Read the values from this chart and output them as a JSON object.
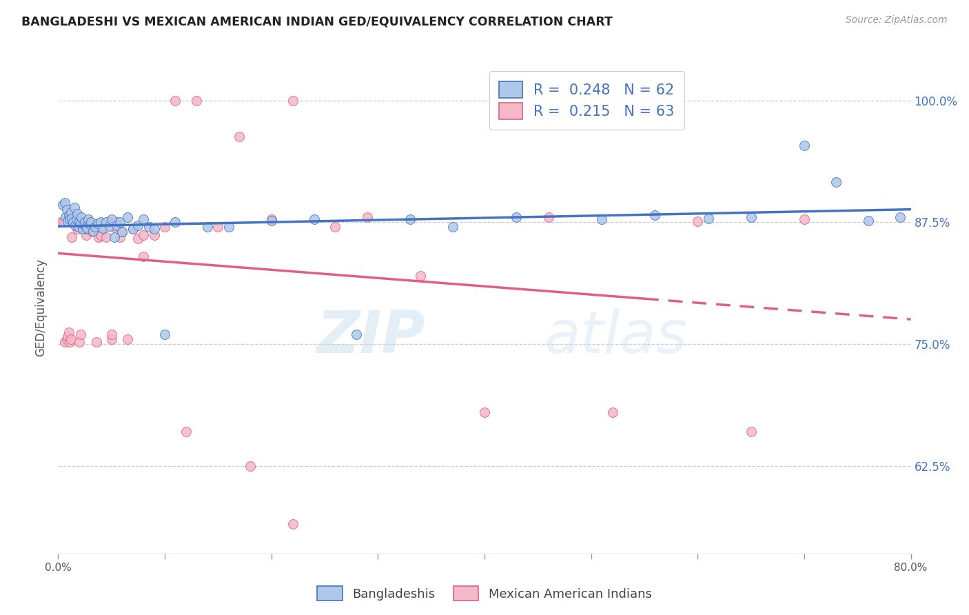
{
  "title": "BANGLADESHI VS MEXICAN AMERICAN INDIAN GED/EQUIVALENCY CORRELATION CHART",
  "source": "Source: ZipAtlas.com",
  "ylabel": "GED/Equivalency",
  "yticks": [
    "62.5%",
    "75.0%",
    "87.5%",
    "100.0%"
  ],
  "ytick_vals": [
    0.625,
    0.75,
    0.875,
    1.0
  ],
  "xlim": [
    0.0,
    0.8
  ],
  "ylim": [
    0.535,
    1.04
  ],
  "blue_R": 0.248,
  "blue_N": 62,
  "pink_R": 0.215,
  "pink_N": 63,
  "blue_color": "#adc8e8",
  "pink_color": "#f5b8c8",
  "blue_line_color": "#4472c4",
  "pink_line_color": "#e06080",
  "legend_label_blue": "Bangladeshis",
  "legend_label_pink": "Mexican American Indians",
  "watermark_zip": "ZIP",
  "watermark_atlas": "atlas",
  "blue_points_x": [
    0.004,
    0.006,
    0.007,
    0.008,
    0.009,
    0.01,
    0.011,
    0.012,
    0.013,
    0.014,
    0.015,
    0.016,
    0.017,
    0.018,
    0.019,
    0.02,
    0.021,
    0.022,
    0.023,
    0.024,
    0.025,
    0.026,
    0.027,
    0.028,
    0.03,
    0.031,
    0.033,
    0.035,
    0.037,
    0.04,
    0.042,
    0.045,
    0.048,
    0.05,
    0.053,
    0.055,
    0.058,
    0.06,
    0.065,
    0.07,
    0.075,
    0.08,
    0.085,
    0.09,
    0.1,
    0.11,
    0.14,
    0.16,
    0.2,
    0.24,
    0.28,
    0.33,
    0.37,
    0.43,
    0.51,
    0.56,
    0.61,
    0.65,
    0.7,
    0.73,
    0.76,
    0.79
  ],
  "blue_points_y": [
    0.893,
    0.895,
    0.88,
    0.888,
    0.876,
    0.882,
    0.878,
    0.885,
    0.879,
    0.875,
    0.89,
    0.872,
    0.878,
    0.884,
    0.87,
    0.876,
    0.874,
    0.88,
    0.868,
    0.873,
    0.875,
    0.871,
    0.869,
    0.878,
    0.873,
    0.875,
    0.866,
    0.87,
    0.874,
    0.875,
    0.869,
    0.875,
    0.871,
    0.878,
    0.86,
    0.872,
    0.875,
    0.865,
    0.88,
    0.868,
    0.872,
    0.878,
    0.87,
    0.868,
    0.76,
    0.875,
    0.87,
    0.87,
    0.877,
    0.878,
    0.76,
    0.878,
    0.87,
    0.88,
    0.878,
    0.882,
    0.879,
    0.88,
    0.954,
    0.916,
    0.877,
    0.88
  ],
  "pink_points_x": [
    0.003,
    0.005,
    0.006,
    0.008,
    0.009,
    0.01,
    0.011,
    0.012,
    0.013,
    0.014,
    0.015,
    0.016,
    0.017,
    0.018,
    0.019,
    0.02,
    0.021,
    0.022,
    0.023,
    0.025,
    0.026,
    0.027,
    0.028,
    0.03,
    0.032,
    0.034,
    0.036,
    0.038,
    0.04,
    0.042,
    0.045,
    0.048,
    0.05,
    0.053,
    0.055,
    0.058,
    0.06,
    0.065,
    0.07,
    0.075,
    0.08,
    0.09,
    0.1,
    0.11,
    0.13,
    0.15,
    0.17,
    0.2,
    0.22,
    0.26,
    0.29,
    0.34,
    0.4,
    0.46,
    0.52,
    0.6,
    0.65,
    0.7,
    0.08,
    0.05,
    0.12,
    0.18,
    0.22
  ],
  "pink_points_y": [
    0.875,
    0.876,
    0.752,
    0.755,
    0.758,
    0.762,
    0.752,
    0.755,
    0.86,
    0.875,
    0.878,
    0.88,
    0.872,
    0.868,
    0.875,
    0.752,
    0.76,
    0.875,
    0.868,
    0.875,
    0.862,
    0.868,
    0.875,
    0.872,
    0.865,
    0.87,
    0.752,
    0.86,
    0.862,
    0.87,
    0.86,
    0.875,
    0.755,
    0.87,
    0.875,
    0.86,
    0.865,
    0.755,
    0.868,
    0.858,
    0.862,
    0.862,
    0.87,
    1.0,
    1.0,
    0.87,
    0.963,
    0.878,
    1.0,
    0.87,
    0.88,
    0.82,
    0.68,
    0.88,
    0.68,
    0.876,
    0.66,
    0.878,
    0.84,
    0.76,
    0.66,
    0.625,
    0.565
  ]
}
